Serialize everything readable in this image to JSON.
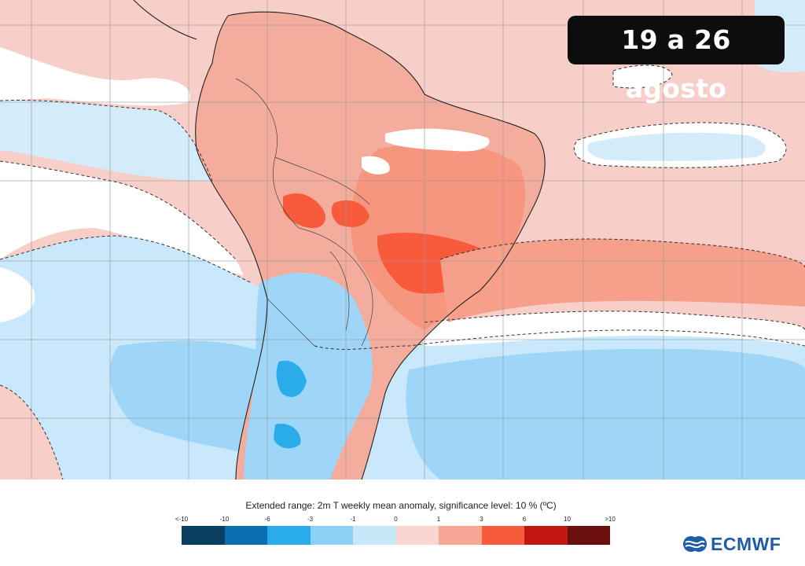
{
  "map": {
    "date_range": "19 a 26 agosto",
    "region": "South America"
  },
  "legend": {
    "title": "Extended range: 2m T weekly mean anomaly, significance level: 10 % (ºC)",
    "unit": "ºC",
    "ticks": [
      "<-10",
      "-10",
      "-6",
      "-3",
      "-1",
      "0",
      "1",
      "3",
      "6",
      "10",
      ">10"
    ],
    "colors": [
      "#0a3e5e",
      "#0a70b0",
      "#2aacea",
      "#8dcff5",
      "#c6e8f9",
      "#fbd6d0",
      "#f9a795",
      "#f85a3c",
      "#c21712",
      "#6a0f0c"
    ]
  },
  "brand": {
    "logo_text": "ECMWF",
    "accent": "#1f5da8"
  }
}
